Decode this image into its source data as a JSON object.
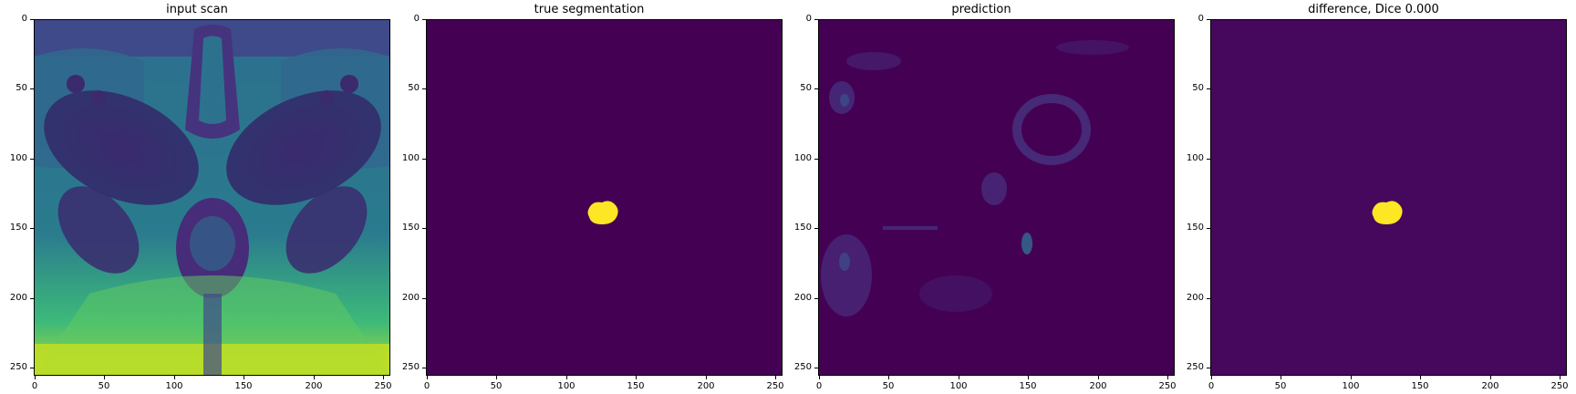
{
  "panels": [
    {
      "title": "input scan",
      "image": "mri-scan-viridis"
    },
    {
      "title": "true segmentation",
      "image": "segmentation-mask"
    },
    {
      "title": "prediction",
      "image": "prediction-heatmap"
    },
    {
      "title": "difference, Dice 0.000",
      "image": "difference-mask"
    }
  ],
  "y_ticks": [
    "0",
    "50",
    "100",
    "150",
    "200",
    "250"
  ],
  "x_ticks": [
    "0",
    "50",
    "100",
    "150",
    "200",
    "250"
  ],
  "image_size": [
    256,
    256
  ],
  "colors": {
    "viridis_low": "#440154",
    "viridis_mid": "#21918c",
    "viridis_high": "#fde725",
    "background": "#ffffff"
  }
}
